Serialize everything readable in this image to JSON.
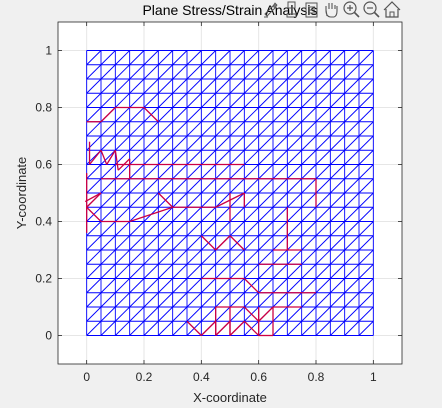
{
  "chart_data": {
    "type": "mesh",
    "title": "Plane Stress/Strain Analysis",
    "xlabel": "X-coordinate",
    "ylabel": "Y-coordinate",
    "xlim": [
      -0.1,
      1.1
    ],
    "ylim": [
      -0.1,
      1.1
    ],
    "xticks": [
      0,
      0.2,
      0.4,
      0.6,
      0.8,
      1
    ],
    "yticks": [
      0,
      0.2,
      0.4,
      0.6,
      0.8,
      1
    ],
    "xtick_labels": [
      "0",
      "0.2",
      "0.4",
      "0.6",
      "0.8",
      "1"
    ],
    "ytick_labels": [
      "0",
      "0.2",
      "0.4",
      "0.6",
      "0.8",
      "1"
    ],
    "grid": true,
    "mesh": {
      "x_range": [
        0,
        1
      ],
      "y_range": [
        0,
        1
      ],
      "divisions_x": 20,
      "divisions_y": 20,
      "element": "triangle",
      "color": "#0000ff"
    },
    "deformed_mesh": {
      "color": "#cc0044",
      "segments": [
        [
          [
            0,
            0.75
          ],
          [
            0.05,
            0.75
          ]
        ],
        [
          [
            0.05,
            0.75
          ],
          [
            0.1,
            0.8
          ]
        ],
        [
          [
            0.1,
            0.8
          ],
          [
            0.2,
            0.8
          ]
        ],
        [
          [
            0.2,
            0.8
          ],
          [
            0.25,
            0.75
          ]
        ],
        [
          [
            0.01,
            0.68
          ],
          [
            0.01,
            0.6
          ]
        ],
        [
          [
            0.01,
            0.6
          ],
          [
            0.05,
            0.65
          ]
        ],
        [
          [
            0.05,
            0.65
          ],
          [
            0.07,
            0.6
          ]
        ],
        [
          [
            0.07,
            0.6
          ],
          [
            0.1,
            0.65
          ]
        ],
        [
          [
            0.1,
            0.65
          ],
          [
            0.11,
            0.58
          ]
        ],
        [
          [
            0.11,
            0.58
          ],
          [
            0.15,
            0.62
          ]
        ],
        [
          [
            0.15,
            0.62
          ],
          [
            0.15,
            0.55
          ]
        ],
        [
          [
            -0.005,
            0.47
          ],
          [
            0.05,
            0.5
          ]
        ],
        [
          [
            0.05,
            0.5
          ],
          [
            0.0,
            0.45
          ]
        ],
        [
          [
            0.0,
            0.45
          ],
          [
            0.05,
            0.4
          ]
        ],
        [
          [
            0.0,
            0.36
          ],
          [
            0.0,
            0.5
          ]
        ],
        [
          [
            0.0,
            0.5
          ],
          [
            0.0,
            0.57
          ]
        ],
        [
          [
            0.05,
            0.55
          ],
          [
            0.2,
            0.55
          ]
        ],
        [
          [
            0.2,
            0.55
          ],
          [
            0.35,
            0.55
          ]
        ],
        [
          [
            0.35,
            0.55
          ],
          [
            0.5,
            0.55
          ]
        ],
        [
          [
            0.5,
            0.55
          ],
          [
            0.6,
            0.55
          ]
        ],
        [
          [
            0.6,
            0.55
          ],
          [
            0.75,
            0.55
          ]
        ],
        [
          [
            0.75,
            0.55
          ],
          [
            0.8,
            0.55
          ]
        ],
        [
          [
            0.8,
            0.55
          ],
          [
            0.8,
            0.45
          ]
        ],
        [
          [
            0.1,
            0.6
          ],
          [
            0.25,
            0.6
          ]
        ],
        [
          [
            0.25,
            0.6
          ],
          [
            0.4,
            0.6
          ]
        ],
        [
          [
            0.4,
            0.6
          ],
          [
            0.55,
            0.6
          ]
        ],
        [
          [
            0.05,
            0.4
          ],
          [
            0.15,
            0.4
          ]
        ],
        [
          [
            0.15,
            0.4
          ],
          [
            0.3,
            0.45
          ]
        ],
        [
          [
            0.3,
            0.45
          ],
          [
            0.45,
            0.45
          ]
        ],
        [
          [
            0.45,
            0.45
          ],
          [
            0.55,
            0.5
          ]
        ],
        [
          [
            0.25,
            0.5
          ],
          [
            0.3,
            0.45
          ]
        ],
        [
          [
            0.5,
            0.5
          ],
          [
            0.5,
            0.4
          ]
        ],
        [
          [
            0.55,
            0.5
          ],
          [
            0.55,
            0.45
          ]
        ],
        [
          [
            0.4,
            0.35
          ],
          [
            0.45,
            0.3
          ]
        ],
        [
          [
            0.45,
            0.3
          ],
          [
            0.5,
            0.35
          ]
        ],
        [
          [
            0.5,
            0.35
          ],
          [
            0.55,
            0.3
          ]
        ],
        [
          [
            0.7,
            0.45
          ],
          [
            0.7,
            0.3
          ]
        ],
        [
          [
            0.65,
            0.3
          ],
          [
            0.75,
            0.3
          ]
        ],
        [
          [
            0.6,
            0.25
          ],
          [
            0.75,
            0.25
          ]
        ],
        [
          [
            0.4,
            0.2
          ],
          [
            0.55,
            0.2
          ]
        ],
        [
          [
            0.55,
            0.2
          ],
          [
            0.6,
            0.15
          ]
        ],
        [
          [
            0.6,
            0.15
          ],
          [
            0.7,
            0.15
          ]
        ],
        [
          [
            0.7,
            0.15
          ],
          [
            0.8,
            0.15
          ]
        ],
        [
          [
            0.45,
            0.1
          ],
          [
            0.55,
            0.1
          ]
        ],
        [
          [
            0.55,
            0.1
          ],
          [
            0.6,
            0.05
          ]
        ],
        [
          [
            0.6,
            0.05
          ],
          [
            0.65,
            0.1
          ]
        ],
        [
          [
            0.65,
            0.1
          ],
          [
            0.75,
            0.1
          ]
        ],
        [
          [
            0.35,
            0.05
          ],
          [
            0.4,
            0.0
          ]
        ],
        [
          [
            0.4,
            0.0
          ],
          [
            0.45,
            0.05
          ]
        ],
        [
          [
            0.45,
            0.05
          ],
          [
            0.45,
            0.0
          ]
        ],
        [
          [
            0.45,
            0.0
          ],
          [
            0.5,
            0.05
          ]
        ],
        [
          [
            0.5,
            0.05
          ],
          [
            0.5,
            0.0
          ]
        ],
        [
          [
            0.5,
            0.0
          ],
          [
            0.55,
            0.05
          ]
        ],
        [
          [
            0.55,
            0.05
          ],
          [
            0.6,
            0.0
          ]
        ],
        [
          [
            0.6,
            0.0
          ],
          [
            0.65,
            0.0
          ]
        ],
        [
          [
            0.65,
            0.0
          ],
          [
            0.65,
            0.1
          ]
        ],
        [
          [
            0.45,
            0.0
          ],
          [
            0.45,
            0.1
          ]
        ],
        [
          [
            0.5,
            0.0
          ],
          [
            0.5,
            0.1
          ]
        ],
        [
          [
            0.6,
            0.0
          ],
          [
            0.6,
            0.1
          ]
        ]
      ]
    }
  },
  "toolbar": {
    "icons": [
      "brush-icon",
      "data-tip-icon",
      "legend-icon",
      "pan-icon",
      "zoom-in-icon",
      "zoom-out-icon",
      "home-icon"
    ]
  },
  "colors": {
    "figure_bg": "#f0f0f0",
    "axes_bg": "#ffffff",
    "mesh": "#0000ff",
    "deformed": "#cc0044",
    "grid": "#e6e6e6",
    "axis": "#262626"
  }
}
